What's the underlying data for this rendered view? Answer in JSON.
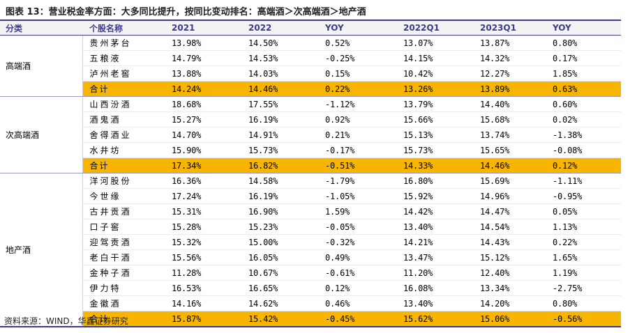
{
  "title": "图表 13：营业税金率方面：大多同比提升，按同比变动排名：高端酒＞次高端酒＞地产酒",
  "source": "资料来源：WIND，华鑫证券研究",
  "colors": {
    "header_text": "#3b3b8f",
    "total_row": "#f7b500"
  },
  "table": {
    "headers": [
      "分类",
      "个股名称",
      "2021",
      "2022",
      "YOY",
      "2022Q1",
      "2023Q1",
      "YOY"
    ],
    "groups": [
      {
        "category": "高端酒",
        "rows": [
          [
            "贵州茅台",
            "13.98%",
            "14.50%",
            "0.52%",
            "13.07%",
            "13.87%",
            "0.80%"
          ],
          [
            "五粮液",
            "14.79%",
            "14.53%",
            "-0.25%",
            "14.15%",
            "14.32%",
            "0.17%"
          ],
          [
            "泸州老窖",
            "13.88%",
            "14.03%",
            "0.15%",
            "10.42%",
            "12.27%",
            "1.85%"
          ]
        ],
        "total": [
          "合计",
          "14.24%",
          "14.46%",
          "0.22%",
          "13.26%",
          "13.89%",
          "0.63%"
        ]
      },
      {
        "category": "次高端酒",
        "rows": [
          [
            "山西汾酒",
            "18.68%",
            "17.55%",
            "-1.12%",
            "13.79%",
            "14.40%",
            "0.60%"
          ],
          [
            "酒鬼酒",
            "15.27%",
            "16.19%",
            "0.92%",
            "15.66%",
            "15.68%",
            "0.02%"
          ],
          [
            "舍得酒业",
            "14.70%",
            "14.91%",
            "0.21%",
            "15.13%",
            "13.74%",
            "-1.38%"
          ],
          [
            "水井坊",
            "15.90%",
            "15.73%",
            "-0.17%",
            "15.73%",
            "15.65%",
            "-0.08%"
          ]
        ],
        "total": [
          "合计",
          "17.34%",
          "16.82%",
          "-0.51%",
          "14.33%",
          "14.46%",
          "0.12%"
        ]
      },
      {
        "category": "地产酒",
        "rows": [
          [
            "洋河股份",
            "16.36%",
            "14.58%",
            "-1.79%",
            "16.80%",
            "15.69%",
            "-1.11%"
          ],
          [
            "今世缘",
            "17.24%",
            "16.19%",
            "-1.05%",
            "15.92%",
            "14.96%",
            "-0.95%"
          ],
          [
            "古井贡酒",
            "15.31%",
            "16.90%",
            "1.59%",
            "14.42%",
            "14.47%",
            "0.05%"
          ],
          [
            "口子窖",
            "15.28%",
            "15.23%",
            "-0.05%",
            "13.40%",
            "14.54%",
            "1.13%"
          ],
          [
            "迎驾贡酒",
            "15.32%",
            "15.00%",
            "-0.32%",
            "14.21%",
            "14.43%",
            "0.22%"
          ],
          [
            "老白干酒",
            "15.56%",
            "16.05%",
            "0.49%",
            "13.47%",
            "15.12%",
            "1.65%"
          ],
          [
            "金种子酒",
            "11.28%",
            "10.67%",
            "-0.61%",
            "11.20%",
            "12.40%",
            "1.19%"
          ],
          [
            "伊力特",
            "16.53%",
            "16.65%",
            "0.12%",
            "16.08%",
            "13.34%",
            "-2.75%"
          ],
          [
            "金徽酒",
            "14.16%",
            "14.62%",
            "0.46%",
            "13.40%",
            "14.20%",
            "0.80%"
          ]
        ],
        "total": [
          "合计",
          "15.87%",
          "15.42%",
          "-0.45%",
          "15.62%",
          "15.06%",
          "-0.56%"
        ]
      }
    ]
  }
}
